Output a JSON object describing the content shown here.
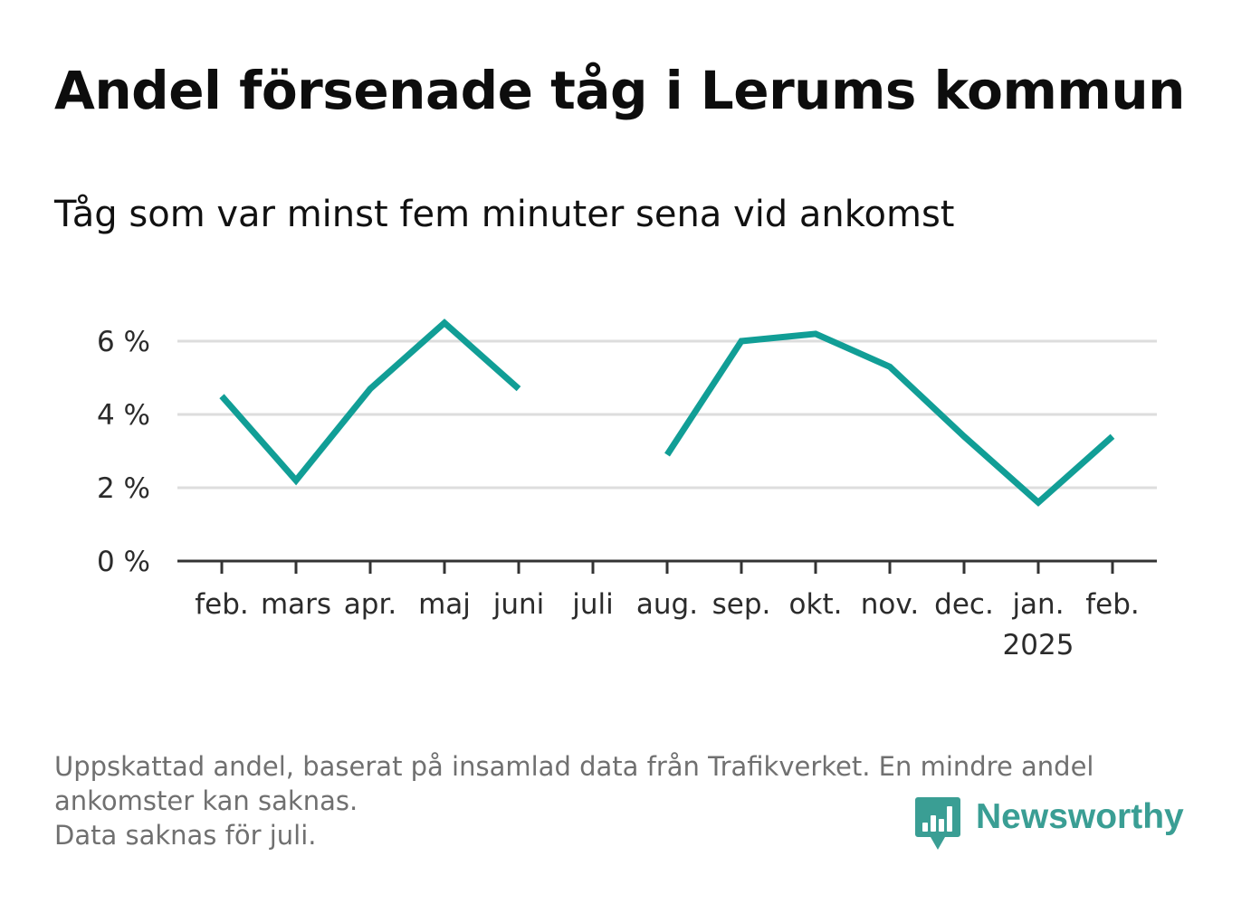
{
  "title": "Andel försenade tåg i Lerums kommun",
  "subtitle": "Tåg som var minst fem minuter sena vid ankomst",
  "footnote": {
    "line1": "Uppskattad andel, baserat på insamlad data från Trafikverket. En mindre andel",
    "line2": "ankomster kan saknas.",
    "line3": "Data saknas för juli."
  },
  "brand": {
    "name": "Newsworthy",
    "icon": "bar-chart-badge-icon",
    "color": "#3a9e94"
  },
  "chart_data": {
    "type": "line",
    "title": "Andel försenade tåg i Lerums kommun",
    "xlabel": "",
    "ylabel": "",
    "categories": [
      "feb.",
      "mars",
      "apr.",
      "maj",
      "juni",
      "juli",
      "aug.",
      "sep.",
      "okt.",
      "nov.",
      "dec.",
      "jan.",
      "feb."
    ],
    "year_label": {
      "category_index": 11,
      "text": "2025"
    },
    "series": [
      {
        "name": "Andel försenade tåg",
        "color": "#119e96",
        "values": [
          4.5,
          2.2,
          4.7,
          6.5,
          4.7,
          null,
          2.9,
          6.0,
          6.2,
          5.3,
          3.4,
          1.6,
          3.4
        ]
      }
    ],
    "ylim": [
      0,
      7
    ],
    "yticks": [
      0,
      2,
      4,
      6
    ],
    "ytick_labels": [
      "0 %",
      "2 %",
      "4 %",
      "6 %"
    ],
    "grid": true,
    "legend": "none"
  }
}
